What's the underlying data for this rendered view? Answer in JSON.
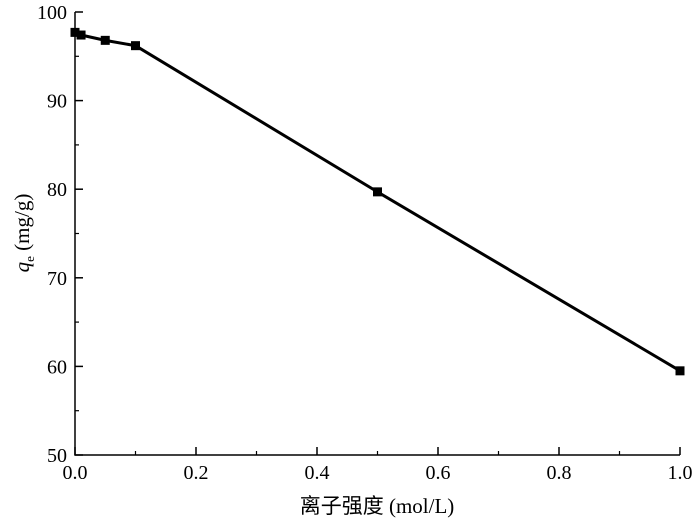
{
  "chart_data": {
    "type": "line",
    "xlabel": "离子强度 (mol/L)",
    "ylabel": {
      "symbol": "q",
      "subscript": "e",
      "unit": " (mg/g)"
    },
    "xlim": [
      0.0,
      1.0
    ],
    "ylim": [
      50,
      100
    ],
    "xticks": [
      0.0,
      0.2,
      0.4,
      0.6,
      0.8,
      1.0
    ],
    "xtick_labels": [
      "0.0",
      "0.2",
      "0.4",
      "0.6",
      "0.8",
      "1.0"
    ],
    "yticks": [
      50,
      60,
      70,
      80,
      90,
      100
    ],
    "ytick_labels": [
      "50",
      "60",
      "70",
      "80",
      "90",
      "100"
    ],
    "grid": false,
    "marker": "square",
    "color": "#000000",
    "series": [
      {
        "x": [
          0.0,
          0.01,
          0.05,
          0.1,
          0.5,
          1.0
        ],
        "y": [
          97.7,
          97.4,
          96.8,
          96.2,
          79.7,
          59.5
        ]
      }
    ]
  }
}
